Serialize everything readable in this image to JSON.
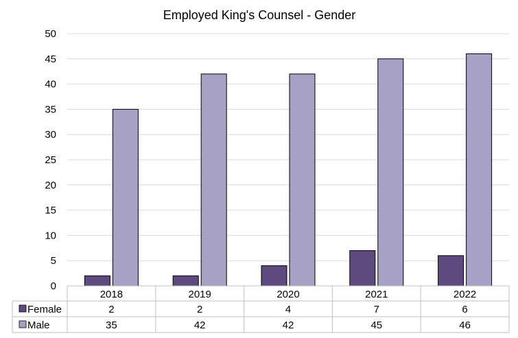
{
  "chart_data": {
    "type": "bar",
    "title": "Employed King's Counsel - Gender",
    "xlabel": "",
    "ylabel": "",
    "categories": [
      "2018",
      "2019",
      "2020",
      "2021",
      "2022"
    ],
    "ylim": [
      0,
      50
    ],
    "yticks": [
      0,
      5,
      10,
      15,
      20,
      25,
      30,
      35,
      40,
      45,
      50
    ],
    "grid": true,
    "legend": "data-table-below",
    "series": [
      {
        "name": "Female",
        "values": [
          2,
          2,
          4,
          7,
          6
        ],
        "color": "#5e4a7e"
      },
      {
        "name": "Male",
        "values": [
          35,
          42,
          42,
          45,
          46
        ],
        "color": "#a7a1c6"
      }
    ]
  }
}
